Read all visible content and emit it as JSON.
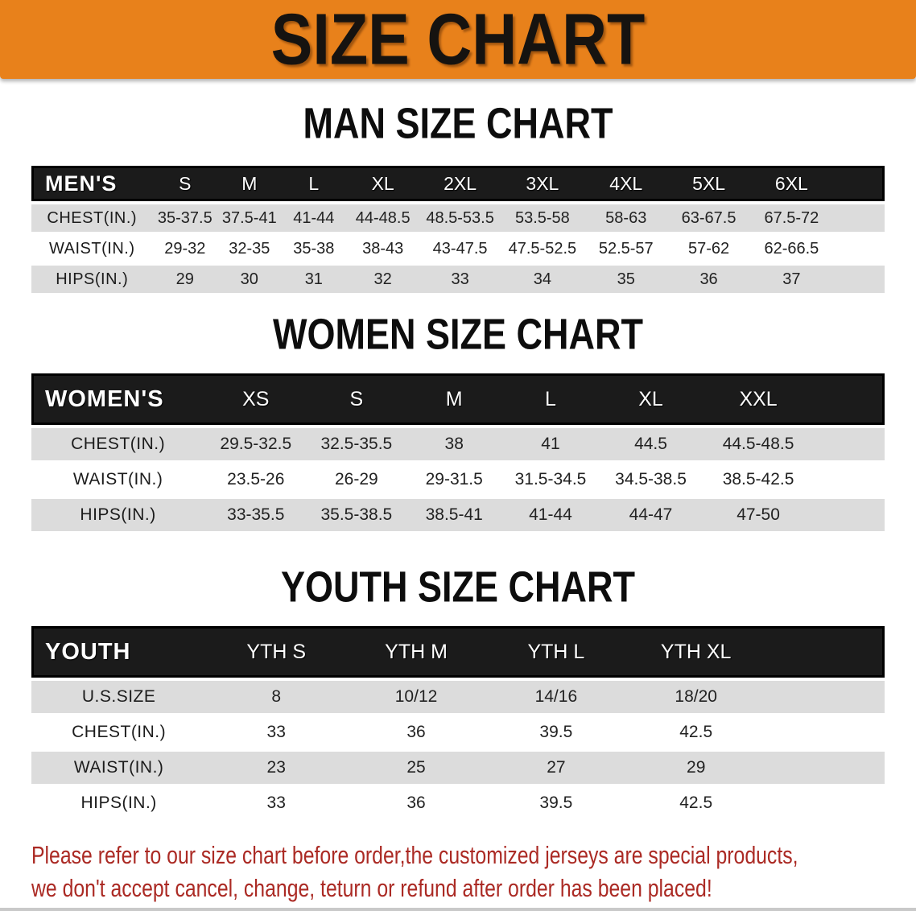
{
  "banner": {
    "title": "SIZE CHART"
  },
  "colors": {
    "accent_orange": "#e8811b",
    "header_black": "#1b1b1b",
    "row_gray": "#dcdcdc",
    "disclaimer_red": "#ab2a24"
  },
  "tables": [
    {
      "id": "men",
      "heading": "MAN SIZE CHART",
      "header": [
        "MEN'S",
        "S",
        "M",
        "L",
        "XL",
        "2XL",
        "3XL",
        "4XL",
        "5XL",
        "6XL"
      ],
      "rows": [
        [
          "CHEST(IN.)",
          "35-37.5",
          "37.5-41",
          "41-44",
          "44-48.5",
          "48.5-53.5",
          "53.5-58",
          "58-63",
          "63-67.5",
          "67.5-72"
        ],
        [
          "WAIST(IN.)",
          "29-32",
          "32-35",
          "35-38",
          "38-43",
          "43-47.5",
          "47.5-52.5",
          "52.5-57",
          "57-62",
          "62-66.5"
        ],
        [
          "HIPS(IN.)",
          "29",
          "30",
          "31",
          "32",
          "33",
          "34",
          "35",
          "36",
          "37"
        ]
      ],
      "col_widths": [
        "14.2%",
        "7.6%",
        "7.5%",
        "7.6%",
        "8.6%",
        "9.5%",
        "9.8%",
        "9.8%",
        "9.6%",
        "9.8%",
        "6.0%"
      ]
    },
    {
      "id": "women",
      "heading": "WOMEN SIZE CHART",
      "header": [
        "WOMEN'S",
        "XS",
        "S",
        "M",
        "L",
        "XL",
        "XXL"
      ],
      "rows": [
        [
          "CHEST(IN.)",
          "29.5-32.5",
          "32.5-35.5",
          "38",
          "41",
          "44.5",
          "44.5-48.5"
        ],
        [
          "WAIST(IN.)",
          "23.5-26",
          "26-29",
          "29-31.5",
          "31.5-34.5",
          "34.5-38.5",
          "38.5-42.5"
        ],
        [
          "HIPS(IN.)",
          "33-35.5",
          "35.5-38.5",
          "38.5-41",
          "41-44",
          "44-47",
          "47-50"
        ]
      ],
      "col_widths": [
        "20.3%",
        "12.0%",
        "11.6%",
        "11.3%",
        "11.3%",
        "12.2%",
        "13.0%",
        "8.3%"
      ]
    },
    {
      "id": "youth",
      "heading": "YOUTH SIZE CHART",
      "header": [
        "YOUTH",
        "YTH S",
        "YTH M",
        "YTH L",
        "YTH XL"
      ],
      "rows": [
        [
          "U.S.SIZE",
          "8",
          "10/12",
          "14/16",
          "18/20"
        ],
        [
          "CHEST(IN.)",
          "33",
          "36",
          "39.5",
          "42.5"
        ],
        [
          "WAIST(IN.)",
          "23",
          "25",
          "27",
          "29"
        ],
        [
          "HIPS(IN.)",
          "33",
          "36",
          "39.5",
          "42.5"
        ]
      ],
      "col_widths": [
        "20.5%",
        "16.4%",
        "16.4%",
        "16.4%",
        "16.4%",
        "13.9%"
      ]
    }
  ],
  "disclaimer": {
    "line1": "Please refer to our size chart before order,the customized jerseys are special products,",
    "line2": "we don't accept cancel, change, teturn or refund after order has been placed!"
  }
}
